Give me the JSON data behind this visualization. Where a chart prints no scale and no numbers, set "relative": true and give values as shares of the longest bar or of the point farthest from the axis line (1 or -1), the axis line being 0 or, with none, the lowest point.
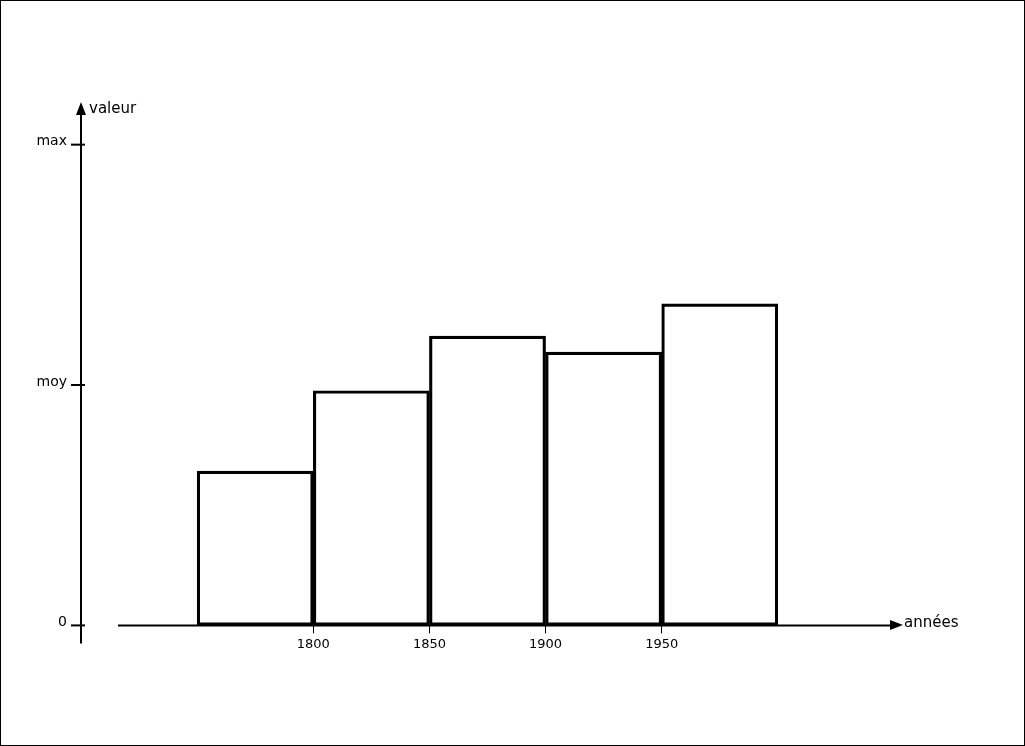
{
  "chart_data": {
    "type": "bar",
    "xlabel": "années",
    "relative": true,
    "x": [
      1775,
      1825,
      1875,
      1925,
      1975
    ],
    "values": [
      0.48,
      0.73,
      0.9,
      0.85,
      1
    ],
    "color": "#000000",
    "xlim": [
      1700,
      2050
    ],
    "xticks": [
      1800,
      1850,
      1900,
      1950
    ],
    "annotations": [
      "valeur",
      "0",
      "moy",
      "max"
    ],
    "grid": false,
    "legend": false
  }
}
